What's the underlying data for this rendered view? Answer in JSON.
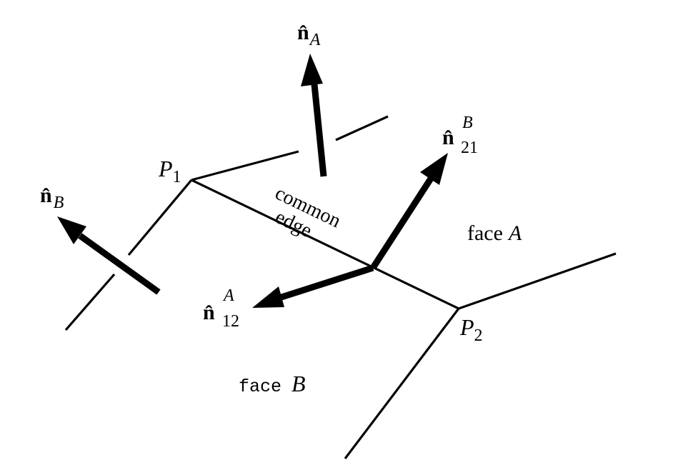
{
  "labels": {
    "p1": {
      "main": "P",
      "sub": "1"
    },
    "p2": {
      "main": "P",
      "sub": "2"
    },
    "n_a": {
      "main": "n̂",
      "sub": "A"
    },
    "n_b": {
      "main": "n̂",
      "sub": "B"
    },
    "n_21b": {
      "main": "n̂",
      "sub": "21",
      "sup": "B"
    },
    "n_12a": {
      "main": "n̂",
      "sub": "12",
      "sup": "A"
    },
    "common_edge": {
      "line1": "common",
      "line2": "edge"
    },
    "face_a": {
      "word": "face",
      "var": "A"
    },
    "face_b": {
      "word": "face",
      "var": "B"
    }
  }
}
